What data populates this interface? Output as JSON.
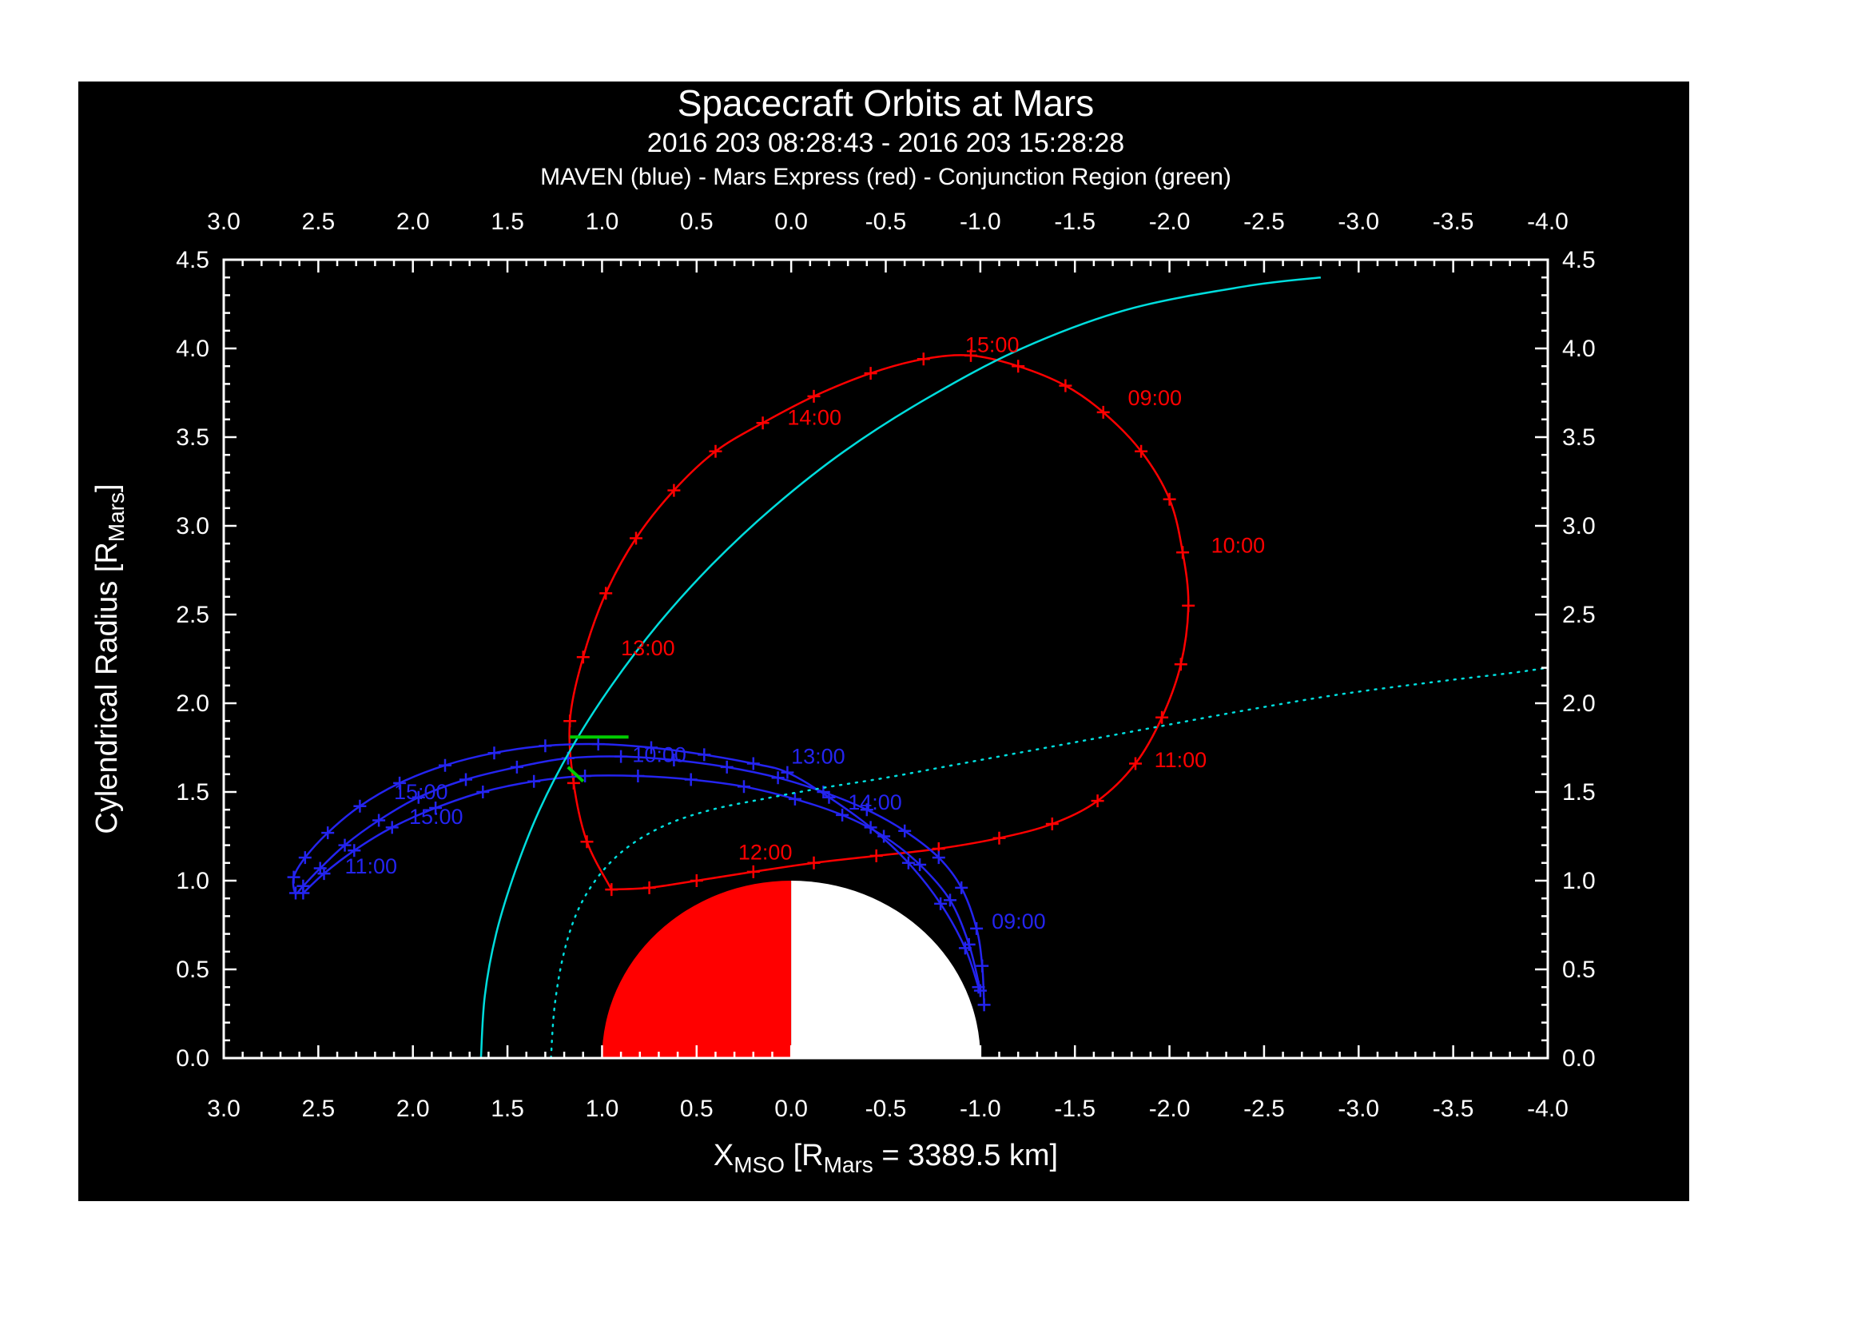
{
  "header": {
    "title": "Spacecraft Orbits at Mars",
    "subtitle": "2016 203 08:28:43 - 2016 203 15:28:28",
    "legend": "MAVEN (blue) - Mars Express (red) - Conjunction Region (green)"
  },
  "chart_data": {
    "type": "line",
    "title": "Spacecraft Orbits at Mars",
    "subtitle": "2016 203 08:28:43 - 2016 203 15:28:28",
    "legend": "MAVEN (blue) - Mars Express (red) - Conjunction Region (green)",
    "xlabel_parts": [
      [
        "X",
        0
      ],
      [
        "MSO",
        1
      ],
      [
        " [R",
        0
      ],
      [
        "Mars",
        1
      ],
      [
        " = 3389.5 km]",
        0
      ]
    ],
    "ylabel_parts": [
      [
        "Cylendrical Radius [R",
        0
      ],
      [
        "Mars",
        1
      ],
      [
        "]",
        0
      ]
    ],
    "xlim": [
      3.0,
      -4.0
    ],
    "ylim": [
      0.0,
      4.5
    ],
    "x_major_ticks": [
      3.0,
      2.5,
      2.0,
      1.5,
      1.0,
      0.5,
      0.0,
      -0.5,
      -1.0,
      -1.5,
      -2.0,
      -2.5,
      -3.0,
      -3.5,
      -4.0
    ],
    "y_major_ticks": [
      0.0,
      0.5,
      1.0,
      1.5,
      2.0,
      2.5,
      3.0,
      3.5,
      4.0,
      4.5
    ],
    "minor_tick_step": 0.1,
    "grid": false,
    "axis_color": "#ffffff",
    "background": "#000000",
    "colors": {
      "maven": "#2424f0",
      "mars_express": "#ff0000",
      "boundary": "#00dddd",
      "conjunction": "#00cc00"
    },
    "mars": {
      "center": [
        0,
        0
      ],
      "radius": 1.0,
      "dayside_color": "#ff0000",
      "nightside_color": "#ffffff"
    },
    "series": [
      {
        "id": "mars-express-orbit",
        "name": "Mars Express (red)",
        "color": "#ff0000",
        "marker": "plus",
        "style": "solid",
        "points": [
          [
            0.95,
            0.95
          ],
          [
            1.08,
            1.22
          ],
          [
            1.15,
            1.55
          ],
          [
            1.17,
            1.9
          ],
          [
            1.1,
            2.26
          ],
          [
            0.98,
            2.62
          ],
          [
            0.82,
            2.93
          ],
          [
            0.62,
            3.2
          ],
          [
            0.4,
            3.42
          ],
          [
            0.15,
            3.58
          ],
          [
            -0.12,
            3.73
          ],
          [
            -0.42,
            3.86
          ],
          [
            -0.7,
            3.94
          ],
          [
            -0.95,
            3.96
          ],
          [
            -1.2,
            3.9
          ],
          [
            -1.45,
            3.79
          ],
          [
            -1.65,
            3.64
          ],
          [
            -1.85,
            3.42
          ],
          [
            -2.0,
            3.15
          ],
          [
            -2.07,
            2.85
          ],
          [
            -2.1,
            2.55
          ],
          [
            -2.06,
            2.22
          ],
          [
            -1.96,
            1.92
          ],
          [
            -1.82,
            1.66
          ],
          [
            -1.62,
            1.45
          ],
          [
            -1.38,
            1.32
          ],
          [
            -1.1,
            1.24
          ],
          [
            -0.78,
            1.18
          ],
          [
            -0.45,
            1.14
          ],
          [
            -0.12,
            1.1
          ],
          [
            0.2,
            1.05
          ],
          [
            0.5,
            1.0
          ],
          [
            0.75,
            0.96
          ],
          [
            0.95,
            0.95
          ]
        ]
      },
      {
        "id": "maven-orbit-pass-1",
        "name": "MAVEN (blue) pass 1",
        "color": "#2424f0",
        "marker": "plus",
        "style": "solid",
        "points": [
          [
            -1.02,
            0.3
          ],
          [
            -1.01,
            0.52
          ],
          [
            -0.98,
            0.73
          ],
          [
            -0.9,
            0.96
          ],
          [
            -0.78,
            1.13
          ],
          [
            -0.6,
            1.28
          ],
          [
            -0.4,
            1.4
          ],
          [
            -0.17,
            1.5
          ],
          [
            0.07,
            1.58
          ],
          [
            0.34,
            1.64
          ],
          [
            0.62,
            1.68
          ],
          [
            0.9,
            1.7
          ],
          [
            1.18,
            1.69
          ],
          [
            1.45,
            1.64
          ],
          [
            1.72,
            1.57
          ],
          [
            1.97,
            1.47
          ],
          [
            2.18,
            1.34
          ],
          [
            2.36,
            1.2
          ],
          [
            2.49,
            1.07
          ],
          [
            2.58,
            0.97
          ],
          [
            2.62,
            0.93
          ],
          [
            2.63,
            1.02
          ],
          [
            2.57,
            1.13
          ],
          [
            2.45,
            1.27
          ],
          [
            2.28,
            1.42
          ],
          [
            2.07,
            1.55
          ],
          [
            1.83,
            1.65
          ],
          [
            1.57,
            1.72
          ],
          [
            1.3,
            1.76
          ],
          [
            1.02,
            1.77
          ],
          [
            0.74,
            1.75
          ],
          [
            0.46,
            1.71
          ],
          [
            0.2,
            1.66
          ],
          [
            0.02,
            1.61
          ],
          [
            -0.2,
            1.47
          ],
          [
            -0.42,
            1.3
          ],
          [
            -0.62,
            1.1
          ],
          [
            -0.79,
            0.87
          ],
          [
            -0.92,
            0.62
          ],
          [
            -0.99,
            0.4
          ]
        ]
      },
      {
        "id": "maven-orbit-pass-2",
        "name": "MAVEN (blue) pass 2",
        "color": "#2424f0",
        "marker": "plus",
        "style": "solid",
        "points": [
          [
            -1.0,
            0.38
          ],
          [
            -0.94,
            0.64
          ],
          [
            -0.84,
            0.89
          ],
          [
            -0.68,
            1.09
          ],
          [
            -0.49,
            1.25
          ],
          [
            -0.27,
            1.37
          ],
          [
            -0.02,
            1.46
          ],
          [
            0.25,
            1.53
          ],
          [
            0.53,
            1.57
          ],
          [
            0.81,
            1.59
          ],
          [
            1.09,
            1.59
          ],
          [
            1.36,
            1.56
          ],
          [
            1.63,
            1.5
          ],
          [
            1.88,
            1.41
          ],
          [
            2.11,
            1.3
          ],
          [
            2.31,
            1.17
          ],
          [
            2.47,
            1.04
          ],
          [
            2.58,
            0.93
          ]
        ]
      },
      {
        "id": "boundary-curve-solid",
        "name": "Boundary curve (solid cyan)",
        "color": "#00dddd",
        "marker": "none",
        "style": "solid",
        "points": [
          [
            1.64,
            0.0
          ],
          [
            1.62,
            0.35
          ],
          [
            1.56,
            0.7
          ],
          [
            1.46,
            1.05
          ],
          [
            1.33,
            1.4
          ],
          [
            1.16,
            1.75
          ],
          [
            0.95,
            2.1
          ],
          [
            0.7,
            2.45
          ],
          [
            0.42,
            2.78
          ],
          [
            0.1,
            3.1
          ],
          [
            -0.28,
            3.42
          ],
          [
            -0.72,
            3.72
          ],
          [
            -1.22,
            4.0
          ],
          [
            -1.78,
            4.22
          ],
          [
            -2.4,
            4.35
          ],
          [
            -2.8,
            4.4
          ]
        ]
      },
      {
        "id": "boundary-curve-dotted",
        "name": "Boundary curve (dotted cyan)",
        "color": "#00dddd",
        "marker": "none",
        "style": "dotted",
        "points": [
          [
            1.27,
            0.0
          ],
          [
            1.25,
            0.3
          ],
          [
            1.2,
            0.6
          ],
          [
            1.12,
            0.85
          ],
          [
            1.0,
            1.05
          ],
          [
            0.85,
            1.2
          ],
          [
            0.65,
            1.32
          ],
          [
            0.42,
            1.4
          ],
          [
            0.15,
            1.46
          ],
          [
            -0.15,
            1.52
          ],
          [
            -0.5,
            1.58
          ],
          [
            -0.9,
            1.66
          ],
          [
            -1.4,
            1.76
          ],
          [
            -1.9,
            1.86
          ],
          [
            -2.4,
            1.96
          ],
          [
            -2.9,
            2.05
          ],
          [
            -3.4,
            2.12
          ],
          [
            -3.8,
            2.17
          ],
          [
            -4.0,
            2.2
          ]
        ]
      },
      {
        "id": "conjunction-region",
        "name": "Conjunction Region (green)",
        "color": "#00cc00",
        "marker": "none",
        "style": "solid",
        "width": 4,
        "points": [
          [
            1.17,
            1.81
          ],
          [
            0.86,
            1.81
          ]
        ]
      },
      {
        "id": "conjunction-region-tick",
        "name": "Conjunction Region tick (green)",
        "color": "#00cc00",
        "marker": "none",
        "style": "solid",
        "width": 4,
        "points": [
          [
            1.18,
            1.64
          ],
          [
            1.1,
            1.56
          ]
        ]
      }
    ],
    "time_labels": [
      {
        "text": "09:00",
        "x": -1.78,
        "y": 3.68,
        "color": "#ff0000"
      },
      {
        "text": "10:00",
        "x": -2.22,
        "y": 2.85,
        "color": "#ff0000"
      },
      {
        "text": "11:00",
        "x": -1.92,
        "y": 1.64,
        "color": "#ff0000"
      },
      {
        "text": "12:00",
        "x": 0.28,
        "y": 1.12,
        "color": "#ff0000"
      },
      {
        "text": "13:00",
        "x": 0.9,
        "y": 2.27,
        "color": "#ff0000"
      },
      {
        "text": "14:00",
        "x": 0.02,
        "y": 3.57,
        "color": "#ff0000"
      },
      {
        "text": "15:00",
        "x": -0.92,
        "y": 3.98,
        "color": "#ff0000"
      },
      {
        "text": "09:00",
        "x": -1.06,
        "y": 0.73,
        "color": "#2424f0"
      },
      {
        "text": "10:00",
        "x": 0.84,
        "y": 1.67,
        "color": "#2424f0"
      },
      {
        "text": "11:00",
        "x": 2.36,
        "y": 1.04,
        "color": "#2424f0"
      },
      {
        "text": "13:00",
        "x": 0.0,
        "y": 1.66,
        "color": "#2424f0"
      },
      {
        "text": "14:00",
        "x": -0.3,
        "y": 1.4,
        "color": "#2424f0"
      },
      {
        "text": "15:00",
        "x": 2.1,
        "y": 1.46,
        "color": "#2424f0"
      },
      {
        "text": "15:00",
        "x": 2.02,
        "y": 1.32,
        "color": "#2424f0"
      }
    ]
  }
}
